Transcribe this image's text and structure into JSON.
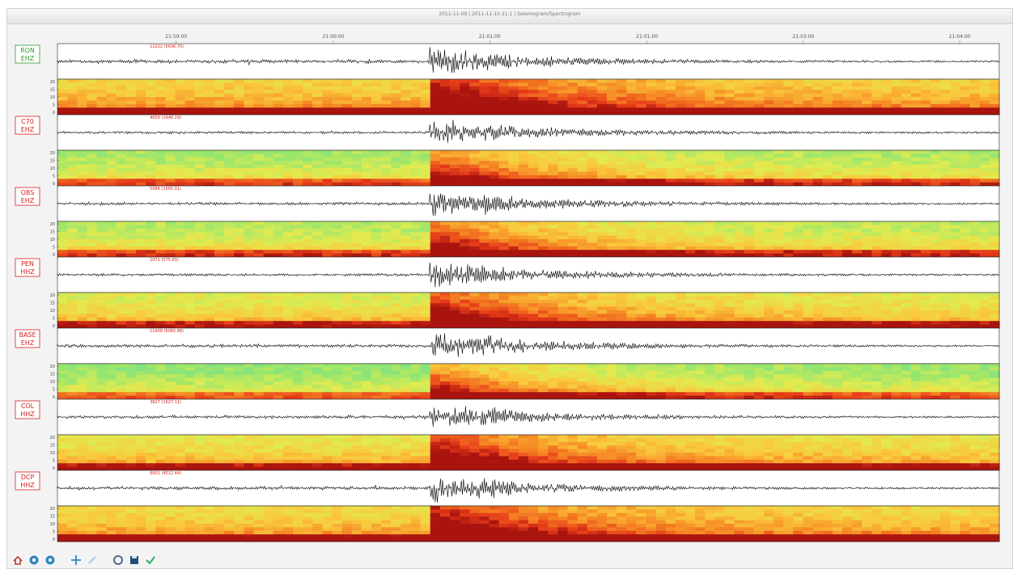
{
  "window": {
    "title": "2011-11-09 | 2011-11-10 21:1 | Seismogram/Spectrogram"
  },
  "time_ticks": [
    "21:59:00",
    "21:00:00",
    "21:01:00",
    "21:01:00",
    "21:03:00",
    "21:04:00"
  ],
  "freq_ticks": [
    "20",
    "15",
    "10",
    "5",
    "0"
  ],
  "stations": [
    {
      "code": "RON",
      "channel": "EHZ",
      "label_color": "#2e9a2e",
      "counts": "11222 (5636.70)",
      "noise": 0.55,
      "spec_base": 0.62
    },
    {
      "code": "C70",
      "channel": "EHZ",
      "label_color": "#d62020",
      "counts": "4059 (1448.29)",
      "noise": 0.2,
      "spec_base": 0.42
    },
    {
      "code": "OBS",
      "channel": "EHZ",
      "label_color": "#d62020",
      "counts": "5086 (1565.01)",
      "noise": 0.35,
      "spec_base": 0.45
    },
    {
      "code": "PEN",
      "channel": "HHZ",
      "label_color": "#d62020",
      "counts": "2071 (575.63)",
      "noise": 0.25,
      "spec_base": 0.52
    },
    {
      "code": "BASE",
      "channel": "EHZ",
      "label_color": "#d62020",
      "counts": "11409 (6065.88)",
      "noise": 0.4,
      "spec_base": 0.38
    },
    {
      "code": "COL",
      "channel": "HHZ",
      "label_color": "#d62020",
      "counts": "3827 (1627.11)",
      "noise": 0.4,
      "spec_base": 0.55
    },
    {
      "code": "DCP",
      "channel": "HHZ",
      "label_color": "#d62020",
      "counts": "6001 (4512.44)",
      "noise": 0.45,
      "spec_base": 0.6
    }
  ],
  "toolbar": [
    {
      "name": "home-icon",
      "color": "#c0392b"
    },
    {
      "name": "back-icon",
      "color": "#2e86c1"
    },
    {
      "name": "forward-icon",
      "color": "#2e86c1"
    },
    {
      "name": "pan-icon",
      "color": "#2e86c1"
    },
    {
      "name": "zoom-icon",
      "color": "#a8c8e8"
    },
    {
      "name": "configure-icon",
      "color": "#4a6a8a"
    },
    {
      "name": "save-icon",
      "color": "#1f4e79"
    },
    {
      "name": "check-icon",
      "color": "#27ae60"
    }
  ],
  "event_onset_fraction": 0.395
}
